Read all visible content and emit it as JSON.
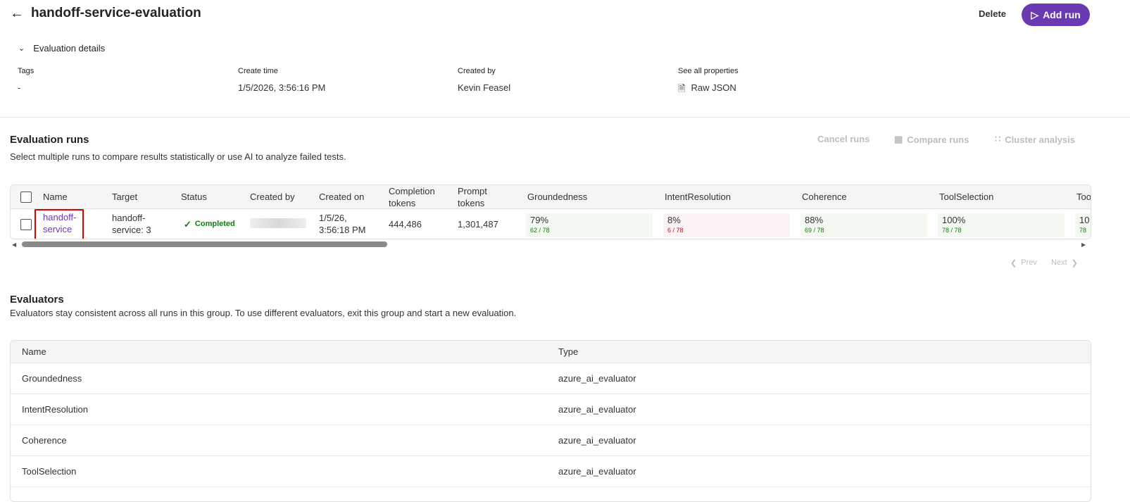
{
  "header": {
    "title": "handoff-service-evaluation",
    "delete_label": "Delete",
    "add_run_label": "Add run"
  },
  "details": {
    "toggle_label": "Evaluation details",
    "tags_label": "Tags",
    "tags_value": "-",
    "create_time_label": "Create time",
    "create_time_value": "1/5/2026, 3:56:16 PM",
    "created_by_label": "Created by",
    "created_by_value": "Kevin Feasel",
    "properties_label": "See all properties",
    "raw_json_label": "Raw JSON"
  },
  "runs": {
    "title": "Evaluation runs",
    "subtitle": "Select multiple runs to compare results statistically or use AI to analyze failed tests.",
    "cancel_label": "Cancel runs",
    "compare_label": "Compare runs",
    "cluster_label": "Cluster analysis",
    "columns": [
      "Name",
      "Target",
      "Status",
      "Created by",
      "Created on",
      "Completion tokens",
      "Prompt tokens",
      "Groundedness",
      "IntentResolution",
      "Coherence",
      "ToolSelection",
      "Too"
    ],
    "row": {
      "name": "handoff-service",
      "target": "handoff-service: 3",
      "status": "Completed",
      "created_on": "1/5/26, 3:56:18 PM",
      "completion_tokens": "444,486",
      "prompt_tokens": "1,301,487",
      "scores": [
        {
          "pct": "79%",
          "frac": "62 / 78",
          "status": "pass"
        },
        {
          "pct": "8%",
          "frac": "6 / 78",
          "status": "fail"
        },
        {
          "pct": "88%",
          "frac": "69 / 78",
          "status": "pass"
        },
        {
          "pct": "100%",
          "frac": "78 / 78",
          "status": "pass"
        },
        {
          "pct": "10",
          "frac": "78",
          "status": "pass"
        }
      ]
    },
    "prev_label": "Prev",
    "next_label": "Next"
  },
  "evaluators": {
    "title": "Evaluators",
    "subtitle": "Evaluators stay consistent across all runs in this group. To use different evaluators, exit this group and start a new evaluation.",
    "name_header": "Name",
    "type_header": "Type",
    "rows": [
      {
        "name": "Groundedness",
        "type": "azure_ai_evaluator"
      },
      {
        "name": "IntentResolution",
        "type": "azure_ai_evaluator"
      },
      {
        "name": "Coherence",
        "type": "azure_ai_evaluator"
      },
      {
        "name": "ToolSelection",
        "type": "azure_ai_evaluator"
      }
    ]
  },
  "colors": {
    "accent": "#6a3ab2",
    "success": "#107c10",
    "fail": "#c50f1f",
    "highlight": "#e00000"
  }
}
